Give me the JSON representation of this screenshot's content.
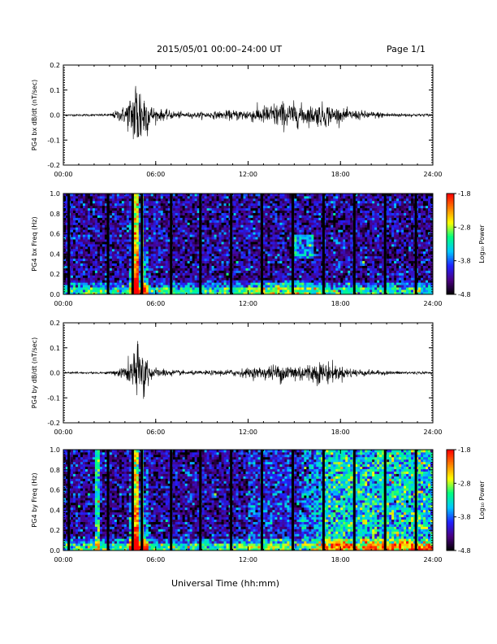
{
  "header": {
    "title": "2015/05/01  00:00–24:00 UT",
    "page": "Page 1/1"
  },
  "footer": {
    "xlabel": "Universal Time (hh:mm)"
  },
  "colorbar": {
    "label": "Log₁₀ Power",
    "ticks": [
      "-1.8",
      "-2.8",
      "-3.8",
      "-4.8"
    ]
  },
  "chart_data": [
    {
      "type": "line",
      "ylabel": "PG4 bx dB/dt (nT/sec)",
      "ylim": [
        -0.2,
        0.2
      ],
      "yticks": [
        "0.2",
        "0.1",
        "0.0",
        "-0.1",
        "-0.2"
      ],
      "xlim": [
        "00:00",
        "24:00"
      ],
      "xticks": [
        "00:00",
        "06:00",
        "12:00",
        "18:00",
        "24:00"
      ],
      "x_hours": [
        0,
        3,
        4,
        4.5,
        4.7,
        5.0,
        5.3,
        5.6,
        6,
        8,
        10,
        12,
        13,
        14,
        15,
        16,
        17,
        18,
        20,
        22,
        24
      ],
      "amplitude": [
        0.003,
        0.004,
        0.03,
        0.08,
        0.15,
        0.12,
        0.09,
        0.04,
        0.02,
        0.008,
        0.012,
        0.02,
        0.03,
        0.045,
        0.04,
        0.03,
        0.04,
        0.02,
        0.012,
        0.006,
        0.004
      ]
    },
    {
      "type": "heatmap",
      "ylabel": "PG4 bx Freq (Hz)",
      "ylim": [
        0.0,
        1.0
      ],
      "yticks": [
        "1.0",
        "0.8",
        "0.6",
        "0.4",
        "0.2",
        "0.0"
      ],
      "xlim": [
        "00:00",
        "24:00"
      ],
      "xticks": [
        "00:00",
        "06:00",
        "12:00",
        "18:00",
        "24:00"
      ],
      "zlim": [
        -4.8,
        -1.8
      ],
      "data_gaps_hours": [
        0.35,
        2.9,
        4.5,
        5.1,
        7.0,
        8.9,
        10.9,
        12.9,
        14.9,
        16.9,
        18.9,
        20.9,
        22.9
      ],
      "strong_event_hours": [
        4.7,
        5.1
      ],
      "enhanced_band_hours": [
        15.0,
        16.3
      ],
      "enhanced_band_freq": [
        0.35,
        0.6
      ],
      "background_log_power": -4.3
    },
    {
      "type": "line",
      "ylabel": "PG4 by dB/dt (nT/sec)",
      "ylim": [
        -0.2,
        0.2
      ],
      "yticks": [
        "0.2",
        "0.1",
        "0.0",
        "-0.1",
        "-0.2"
      ],
      "xlim": [
        "00:00",
        "24:00"
      ],
      "xticks": [
        "00:00",
        "06:00",
        "12:00",
        "18:00",
        "24:00"
      ],
      "x_hours": [
        0,
        3,
        4,
        4.5,
        4.7,
        5.0,
        5.3,
        5.6,
        6,
        8,
        10,
        12,
        13,
        14,
        15,
        16,
        17,
        18,
        20,
        22,
        24
      ],
      "amplitude": [
        0.003,
        0.004,
        0.02,
        0.06,
        0.1,
        0.09,
        0.08,
        0.03,
        0.015,
        0.006,
        0.008,
        0.015,
        0.02,
        0.03,
        0.03,
        0.03,
        0.04,
        0.02,
        0.008,
        0.005,
        0.004
      ]
    },
    {
      "type": "heatmap",
      "ylabel": "PG4 by Freq (Hz)",
      "ylim": [
        0.0,
        1.0
      ],
      "yticks": [
        "1.0",
        "0.8",
        "0.6",
        "0.4",
        "0.2",
        "0.0"
      ],
      "xlim": [
        "00:00",
        "24:00"
      ],
      "xticks": [
        "00:00",
        "06:00",
        "12:00",
        "18:00",
        "24:00"
      ],
      "zlim": [
        -4.8,
        -1.8
      ],
      "data_gaps_hours": [
        0.35,
        2.9,
        4.5,
        5.1,
        7.0,
        8.9,
        10.9,
        12.9,
        14.9,
        16.9,
        18.9,
        20.9,
        22.9
      ],
      "strong_event_hours": [
        4.7,
        5.1
      ],
      "broadband_rise_from_hours": 15.0,
      "background_log_power": -4.3
    }
  ],
  "colors": {
    "axis": "#000000",
    "colormap": [
      "#000000",
      "#4a0080",
      "#2020ff",
      "#00c8ff",
      "#00ff80",
      "#ffff00",
      "#ff8000",
      "#ff0000"
    ]
  }
}
